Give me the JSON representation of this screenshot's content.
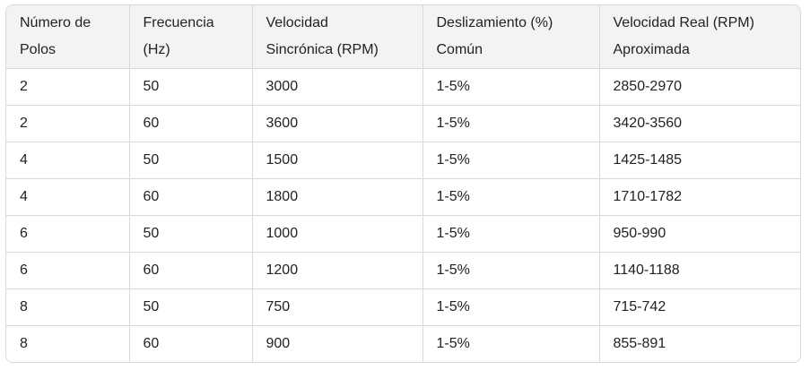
{
  "table": {
    "header": [
      [
        "Número de",
        "Polos"
      ],
      [
        "Frecuencia",
        "(Hz)"
      ],
      [
        "Velocidad",
        "Sincrónica (RPM)"
      ],
      [
        "Deslizamiento (%)",
        "Común"
      ],
      [
        "Velocidad Real (RPM)",
        "Aproximada"
      ]
    ],
    "rows": [
      [
        "2",
        "50",
        "3000",
        "1-5%",
        "2850-2970"
      ],
      [
        "2",
        "60",
        "3600",
        "1-5%",
        "3420-3560"
      ],
      [
        "4",
        "50",
        "1500",
        "1-5%",
        "1425-1485"
      ],
      [
        "4",
        "60",
        "1800",
        "1-5%",
        "1710-1782"
      ],
      [
        "6",
        "50",
        "1000",
        "1-5%",
        "950-990"
      ],
      [
        "6",
        "60",
        "1200",
        "1-5%",
        "1140-1188"
      ],
      [
        "8",
        "50",
        "750",
        "1-5%",
        "715-742"
      ],
      [
        "8",
        "60",
        "900",
        "1-5%",
        "855-891"
      ]
    ]
  }
}
